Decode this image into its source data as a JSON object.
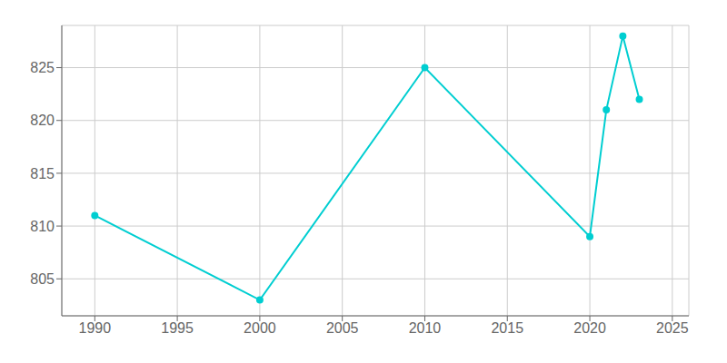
{
  "chart_data": {
    "type": "line",
    "x": [
      1990,
      2000,
      2010,
      2020,
      2021,
      2022,
      2023
    ],
    "values": [
      811,
      803,
      825,
      809,
      821,
      828,
      822
    ],
    "color": "#00CED1",
    "marker": "circle",
    "xlim": [
      1988,
      2026
    ],
    "xticks": [
      1990,
      1995,
      2000,
      2005,
      2010,
      2015,
      2020,
      2025
    ],
    "ylim": [
      801.5,
      829
    ],
    "yticks": [
      805,
      810,
      815,
      820,
      825
    ],
    "grid": true
  }
}
